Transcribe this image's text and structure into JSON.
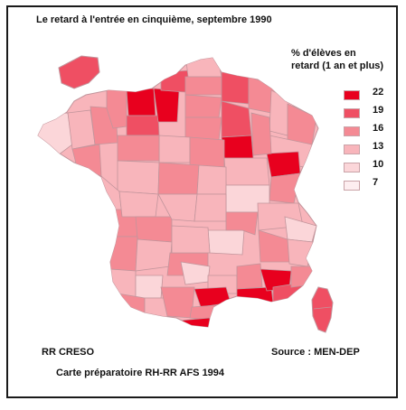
{
  "map": {
    "title": "Le retard à l'entrée en cinquième, septembre 1990",
    "legend": {
      "title_line1": "% d'élèves en",
      "title_line2": "retard (1 an et plus)",
      "classes": [
        {
          "label": "22",
          "color": "#e8001e"
        },
        {
          "label": "19",
          "color": "#ef4f63"
        },
        {
          "label": "16",
          "color": "#f48a94"
        },
        {
          "label": "13",
          "color": "#f8b5bb"
        },
        {
          "label": "10",
          "color": "#fbd6d9"
        },
        {
          "label": "7",
          "color": "#fdeef0"
        }
      ]
    },
    "credit_left": "RR CRESO",
    "source": "Source : MEN-DEP",
    "caption": "Carte préparatoire RH-RR  AFS 1994"
  }
}
